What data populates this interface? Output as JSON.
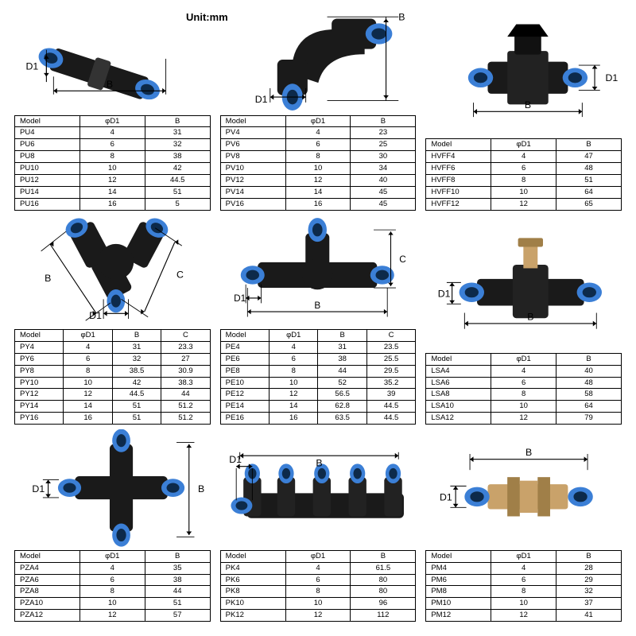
{
  "unit_label": "Unit:mm",
  "colors": {
    "body": "#1a1a1a",
    "collar": "#3b7fd6",
    "collar_dark": "#2a5fa8",
    "brass": "#c9a26a",
    "brass_dark": "#a07f48",
    "dim_line": "#000000",
    "dim_text": "#000000"
  },
  "sections": [
    {
      "id": "pu",
      "diagram": "straight",
      "dims": [
        "D1",
        "B"
      ],
      "columns": [
        "Model",
        "φD1",
        "B"
      ],
      "rows": [
        [
          "PU4",
          "4",
          "31"
        ],
        [
          "PU6",
          "6",
          "32"
        ],
        [
          "PU8",
          "8",
          "38"
        ],
        [
          "PU10",
          "10",
          "42"
        ],
        [
          "PU12",
          "12",
          "44.5"
        ],
        [
          "PU14",
          "14",
          "51"
        ],
        [
          "PU16",
          "16",
          "5"
        ]
      ]
    },
    {
      "id": "pv",
      "diagram": "elbow",
      "dims": [
        "D1",
        "B"
      ],
      "columns": [
        "Model",
        "φD1",
        "B"
      ],
      "rows": [
        [
          "PV4",
          "4",
          "23"
        ],
        [
          "PV6",
          "6",
          "25"
        ],
        [
          "PV8",
          "8",
          "30"
        ],
        [
          "PV10",
          "10",
          "34"
        ],
        [
          "PV12",
          "12",
          "40"
        ],
        [
          "PV14",
          "14",
          "45"
        ],
        [
          "PV16",
          "16",
          "45"
        ]
      ]
    },
    {
      "id": "hvff",
      "diagram": "valve",
      "dims": [
        "D1",
        "B"
      ],
      "columns": [
        "Model",
        "φD1",
        "B"
      ],
      "rows": [
        [
          "HVFF4",
          "4",
          "47"
        ],
        [
          "HVFF6",
          "6",
          "48"
        ],
        [
          "HVFF8",
          "8",
          "51"
        ],
        [
          "HVFF10",
          "10",
          "64"
        ],
        [
          "HVFF12",
          "12",
          "65"
        ]
      ]
    },
    {
      "id": "py",
      "diagram": "wye",
      "dims": [
        "D1",
        "B",
        "C"
      ],
      "columns": [
        "Model",
        "φD1",
        "B",
        "C"
      ],
      "rows": [
        [
          "PY4",
          "4",
          "31",
          "23.3"
        ],
        [
          "PY6",
          "6",
          "32",
          "27"
        ],
        [
          "PY8",
          "8",
          "38.5",
          "30.9"
        ],
        [
          "PY10",
          "10",
          "42",
          "38.3"
        ],
        [
          "PY12",
          "12",
          "44.5",
          "44"
        ],
        [
          "PY14",
          "14",
          "51",
          "51.2"
        ],
        [
          "PY16",
          "16",
          "51",
          "51.2"
        ]
      ]
    },
    {
      "id": "pe",
      "diagram": "tee",
      "dims": [
        "D1",
        "B",
        "C"
      ],
      "columns": [
        "Model",
        "φD1",
        "B",
        "C"
      ],
      "rows": [
        [
          "PE4",
          "4",
          "31",
          "23.5"
        ],
        [
          "PE6",
          "6",
          "38",
          "25.5"
        ],
        [
          "PE8",
          "8",
          "44",
          "29.5"
        ],
        [
          "PE10",
          "10",
          "52",
          "35.2"
        ],
        [
          "PE12",
          "12",
          "56.5",
          "39"
        ],
        [
          "PE14",
          "14",
          "62.8",
          "44.5"
        ],
        [
          "PE16",
          "16",
          "63.5",
          "44.5"
        ]
      ]
    },
    {
      "id": "lsa",
      "diagram": "flowcontrol",
      "dims": [
        "D1",
        "B"
      ],
      "columns": [
        "Model",
        "φD1",
        "B"
      ],
      "rows": [
        [
          "LSA4",
          "4",
          "40"
        ],
        [
          "LSA6",
          "6",
          "48"
        ],
        [
          "LSA8",
          "8",
          "58"
        ],
        [
          "LSA10",
          "10",
          "64"
        ],
        [
          "LSA12",
          "12",
          "79"
        ]
      ]
    },
    {
      "id": "pza",
      "diagram": "cross",
      "dims": [
        "D1",
        "B"
      ],
      "columns": [
        "Model",
        "φD1",
        "B"
      ],
      "rows": [
        [
          "PZA4",
          "4",
          "35"
        ],
        [
          "PZA6",
          "6",
          "38"
        ],
        [
          "PZA8",
          "8",
          "44"
        ],
        [
          "PZA10",
          "10",
          "51"
        ],
        [
          "PZA12",
          "12",
          "57"
        ]
      ]
    },
    {
      "id": "pk",
      "diagram": "manifold",
      "dims": [
        "D1",
        "B"
      ],
      "columns": [
        "Model",
        "φD1",
        "B"
      ],
      "rows": [
        [
          "PK4",
          "4",
          "61.5"
        ],
        [
          "PK6",
          "6",
          "80"
        ],
        [
          "PK8",
          "8",
          "80"
        ],
        [
          "PK10",
          "10",
          "96"
        ],
        [
          "PK12",
          "12",
          "112"
        ]
      ]
    },
    {
      "id": "pm",
      "diagram": "bulkhead",
      "dims": [
        "D1",
        "B"
      ],
      "columns": [
        "Model",
        "φD1",
        "B"
      ],
      "rows": [
        [
          "PM4",
          "4",
          "28"
        ],
        [
          "PM6",
          "6",
          "29"
        ],
        [
          "PM8",
          "8",
          "32"
        ],
        [
          "PM10",
          "10",
          "37"
        ],
        [
          "PM12",
          "12",
          "41"
        ]
      ]
    }
  ]
}
